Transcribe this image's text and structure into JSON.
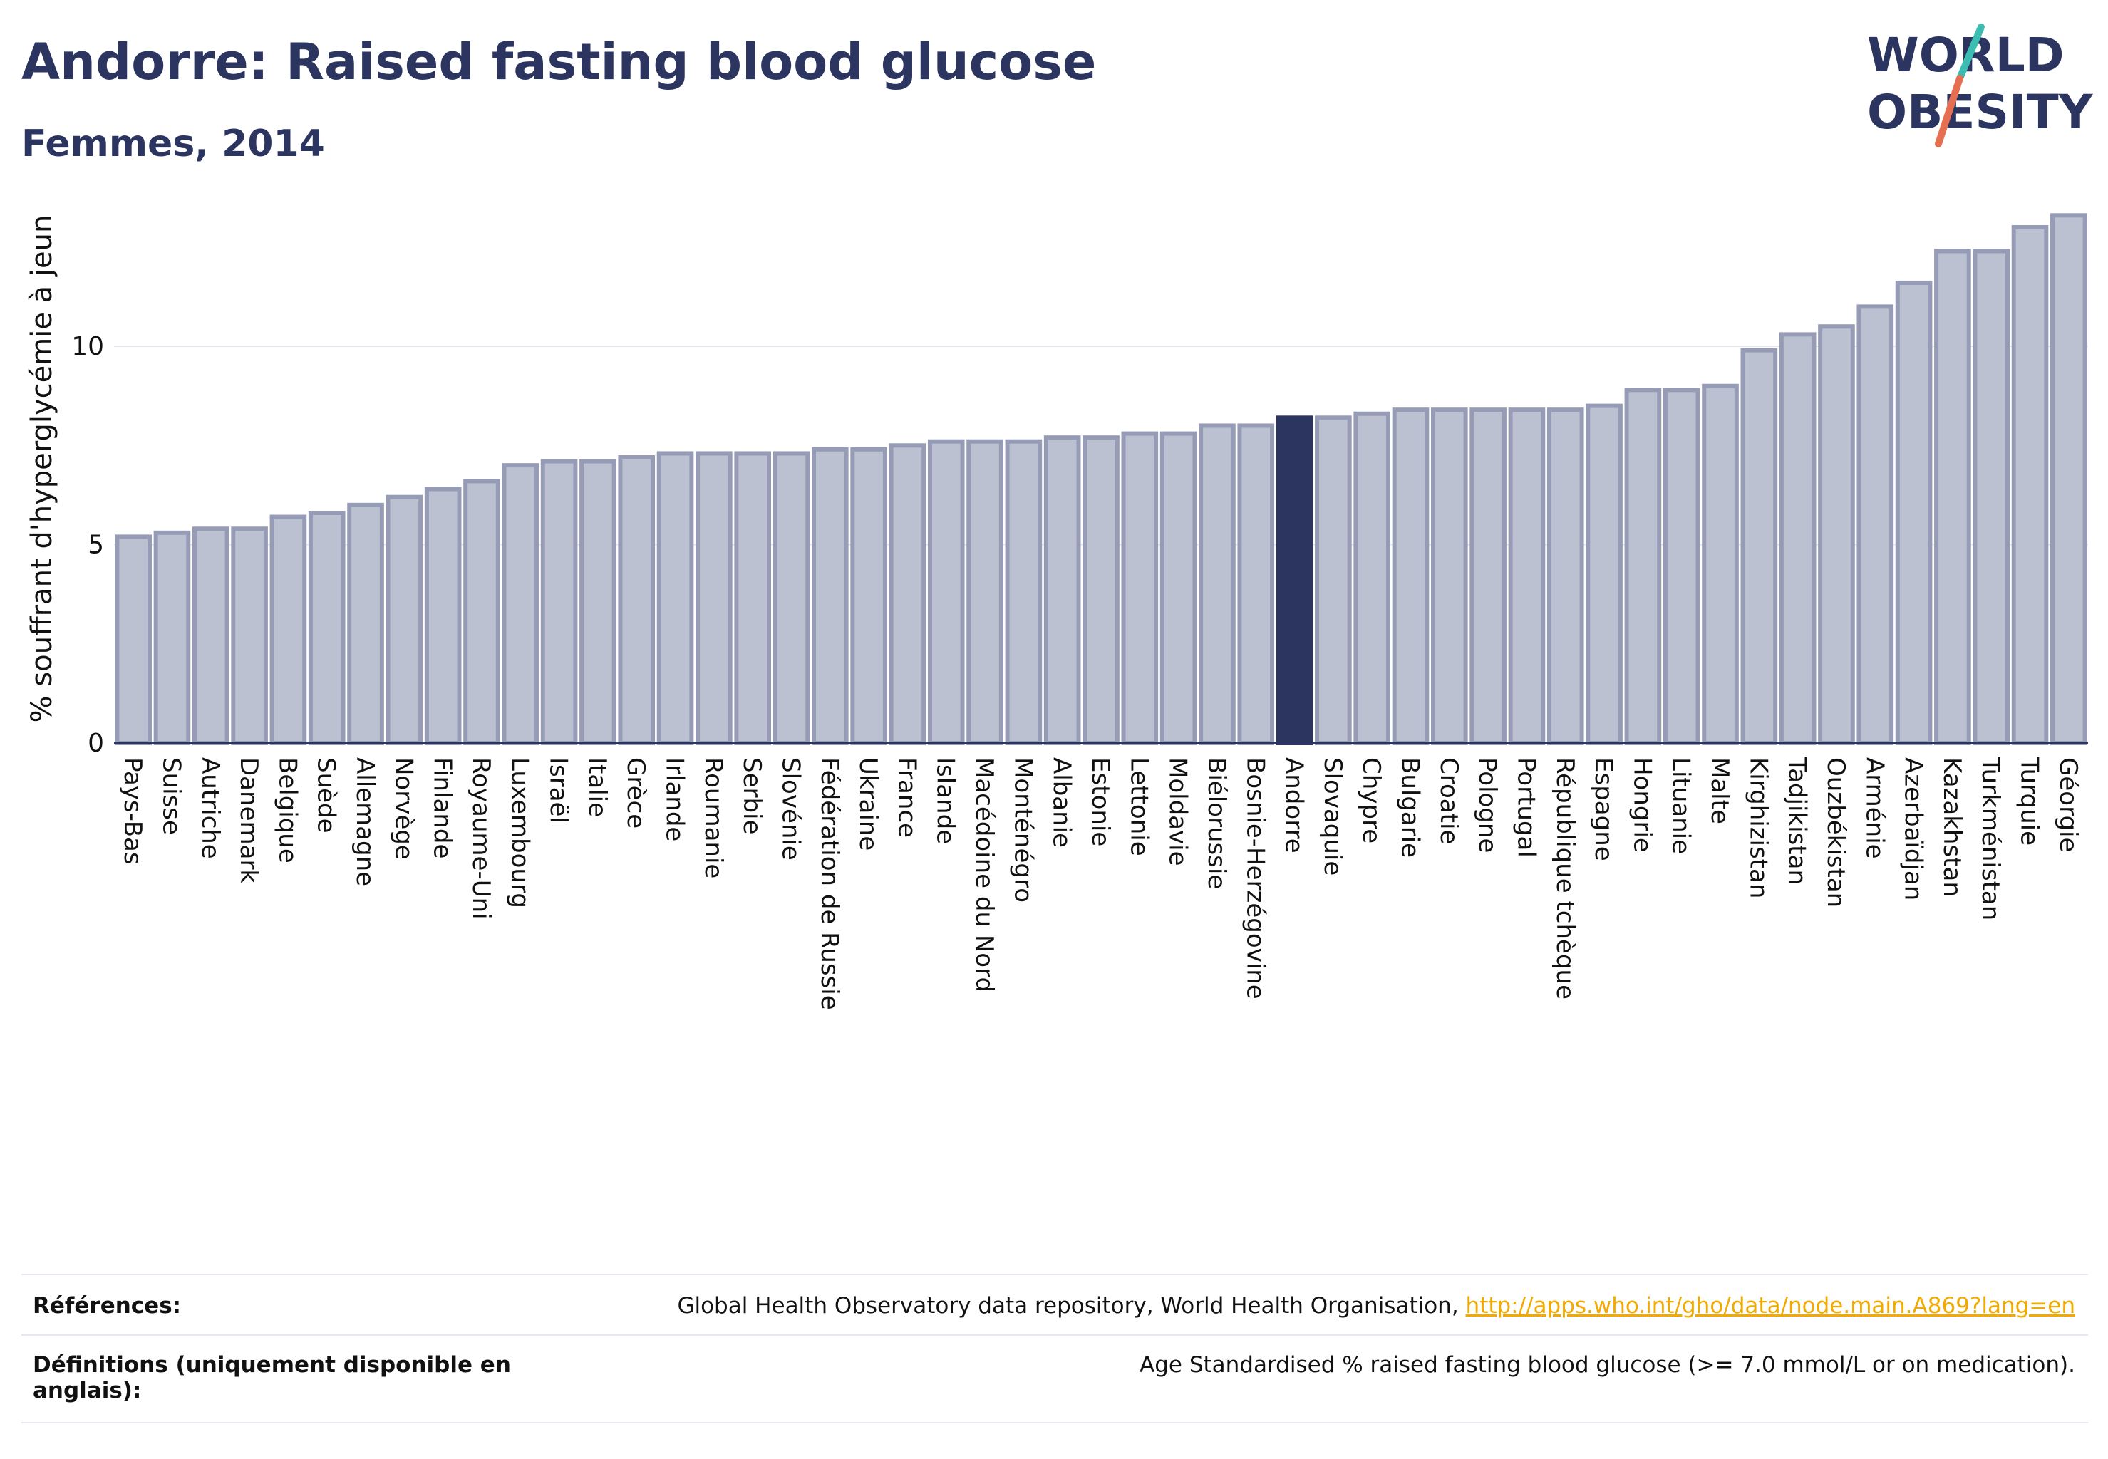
{
  "header": {
    "title": "Andorre: Raised fasting blood glucose",
    "subtitle": "Femmes, 2014"
  },
  "logo": {
    "line1": "WORLD",
    "line2": "OBESITY"
  },
  "colors": {
    "bar_fill": "#bcc1d1",
    "bar_stroke": "#969cb6",
    "highlight": "#2b3560",
    "text": "#2b3560",
    "link": "#f2a900",
    "logo_slash_teal": "#3bbdb2",
    "logo_slash_coral": "#e76f51"
  },
  "chart_data": {
    "type": "bar",
    "ylabel": "% souffrant d'hyperglycémie à jeun",
    "ylim": [
      0,
      13.7
    ],
    "yticks": [
      0,
      5,
      10
    ],
    "grid": true,
    "highlight": "Andorre",
    "categories": [
      "Pays-Bas",
      "Suisse",
      "Autriche",
      "Danemark",
      "Belgique",
      "Suède",
      "Allemagne",
      "Norvège",
      "Finlande",
      "Royaume-Uni",
      "Luxembourg",
      "Israël",
      "Italie",
      "Grèce",
      "Irlande",
      "Roumanie",
      "Serbie",
      "Slovénie",
      "Fédération de Russie",
      "Ukraine",
      "France",
      "Islande",
      "Macédoine du Nord",
      "Monténégro",
      "Albanie",
      "Estonie",
      "Lettonie",
      "Moldavie",
      "Biélorussie",
      "Bosnie-Herzégovine",
      "Andorre",
      "Slovaquie",
      "Chypre",
      "Bulgarie",
      "Croatie",
      "Pologne",
      "Portugal",
      "République tchèque",
      "Espagne",
      "Hongrie",
      "Lituanie",
      "Malte",
      "Kirghizistan",
      "Tadjikistan",
      "Ouzbékistan",
      "Arménie",
      "Azerbaïdjan",
      "Kazakhstan",
      "Turkménistan",
      "Turquie",
      "Géorgie"
    ],
    "values": [
      5.2,
      5.3,
      5.4,
      5.4,
      5.7,
      5.8,
      6.0,
      6.2,
      6.4,
      6.6,
      7.0,
      7.1,
      7.1,
      7.2,
      7.3,
      7.3,
      7.3,
      7.3,
      7.4,
      7.4,
      7.5,
      7.6,
      7.6,
      7.6,
      7.7,
      7.7,
      7.8,
      7.8,
      8.0,
      8.0,
      8.2,
      8.2,
      8.3,
      8.4,
      8.4,
      8.4,
      8.4,
      8.4,
      8.5,
      8.9,
      8.9,
      9.0,
      9.9,
      10.3,
      10.5,
      11.0,
      11.6,
      12.4,
      12.4,
      13.0,
      13.3
    ]
  },
  "footer": {
    "references_label": "Références:",
    "references_text": "Global Health Observatory data repository, World Health Organisation, ",
    "references_link": "http://apps.who.int/gho/data/node.main.A869?lang=en",
    "definitions_label": "Définitions (uniquement disponible en anglais):",
    "definitions_text": "Age Standardised % raised fasting blood glucose (>= 7.0 mmol/L or on medication)."
  }
}
